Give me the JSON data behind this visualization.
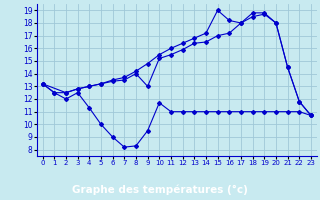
{
  "title": "Graphe des températures (°c)",
  "background_color": "#c8eaf0",
  "label_bg_color": "#0000aa",
  "label_text_color": "#ffffff",
  "grid_color": "#a0c8d8",
  "line_color": "#0000cc",
  "xlim": [
    -0.5,
    23.5
  ],
  "ylim": [
    7.5,
    19.5
  ],
  "xticks": [
    0,
    1,
    2,
    3,
    4,
    5,
    6,
    7,
    8,
    9,
    10,
    11,
    12,
    13,
    14,
    15,
    16,
    17,
    18,
    19,
    20,
    21,
    22,
    23
  ],
  "yticks": [
    8,
    9,
    10,
    11,
    12,
    13,
    14,
    15,
    16,
    17,
    18,
    19
  ],
  "series1_x": [
    0,
    1,
    2,
    3,
    4,
    5,
    6,
    7,
    8,
    9,
    10,
    11,
    12,
    13,
    14,
    15,
    16,
    17,
    18,
    19,
    20,
    21,
    22,
    23
  ],
  "series1_y": [
    13.2,
    12.5,
    12.0,
    12.5,
    11.3,
    10.0,
    9.0,
    8.2,
    8.3,
    9.5,
    11.7,
    11.0,
    11.0,
    11.0,
    11.0,
    11.0,
    11.0,
    11.0,
    11.0,
    11.0,
    11.0,
    11.0,
    11.0,
    10.7
  ],
  "series2_x": [
    0,
    1,
    2,
    3,
    4,
    5,
    6,
    7,
    8,
    9,
    10,
    11,
    12,
    13,
    14,
    15,
    16,
    17,
    18,
    19,
    20,
    21,
    22,
    23
  ],
  "series2_y": [
    13.2,
    12.5,
    12.5,
    12.8,
    13.0,
    13.2,
    13.4,
    13.5,
    14.0,
    13.0,
    15.2,
    15.5,
    15.9,
    16.4,
    16.5,
    17.0,
    17.2,
    18.0,
    18.5,
    18.7,
    18.0,
    14.5,
    11.8,
    10.7
  ],
  "series3_x": [
    0,
    2,
    3,
    4,
    5,
    6,
    7,
    8,
    9,
    10,
    11,
    12,
    13,
    14,
    15,
    16,
    17,
    18,
    19,
    20,
    21,
    22,
    23
  ],
  "series3_y": [
    13.2,
    12.5,
    12.8,
    13.0,
    13.2,
    13.5,
    13.7,
    14.2,
    14.8,
    15.5,
    16.0,
    16.4,
    16.8,
    17.2,
    19.0,
    18.2,
    18.0,
    18.8,
    18.8,
    18.0,
    14.5,
    11.8,
    10.7
  ]
}
